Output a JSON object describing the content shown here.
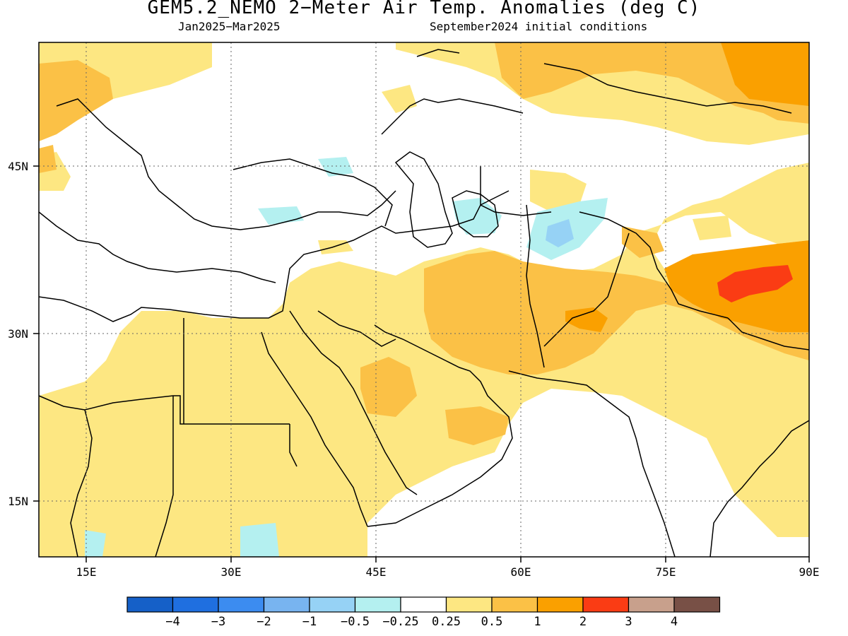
{
  "title": "GEM5.2_NEMO 2−Meter Air Temp. Anomalies (deg C)",
  "subtitle_left": "Jan2025−Mar2025",
  "subtitle_right": "September2024 initial conditions",
  "map": {
    "region": "Middle East / South-West Asia",
    "lon_range": [
      10,
      90
    ],
    "lat_range": [
      10,
      55
    ],
    "x_ticks": [
      "15E",
      "30E",
      "45E",
      "60E",
      "75E",
      "90E"
    ],
    "y_ticks": [
      "45N",
      "30N",
      "15N"
    ],
    "gridlines": "dotted",
    "colorbar": {
      "boundaries": [
        "−4",
        "−3",
        "−2",
        "−1",
        "−0.5",
        "−0.25",
        "0.25",
        "0.5",
        "1",
        "2",
        "3",
        "4"
      ],
      "colors": [
        "#1560c8",
        "#1f6fe0",
        "#3c8cf0",
        "#78b4f0",
        "#96d2f5",
        "#b4f0f0",
        "#ffffff",
        "#fde782",
        "#fbc146",
        "#faa000",
        "#fa3c14",
        "#c8a08c",
        "#785046"
      ]
    }
  }
}
